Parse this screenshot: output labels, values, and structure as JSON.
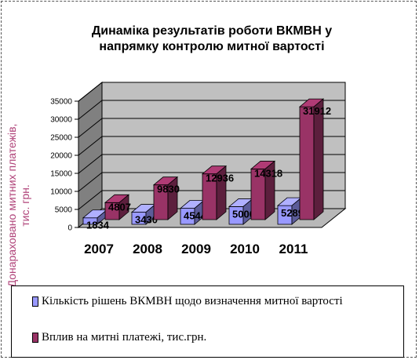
{
  "chart_data": {
    "type": "bar",
    "title_lines": [
      "Динаміка результатів роботи ВКМВН у",
      "напрямку контролю митної вартості"
    ],
    "ylabel_lines": [
      "Донараховано митних платежів,",
      "тис. грн."
    ],
    "categories": [
      "2007",
      "2008",
      "2009",
      "2010",
      "2011"
    ],
    "series": [
      {
        "name": "Кількість рішень ВКМВН щодо визначення митної вартості",
        "values": [
          1834,
          3430,
          4544,
          5000,
          5289
        ],
        "color": "#9999ff"
      },
      {
        "name": "Вплив на митні платежі, тис.грн.",
        "values": [
          4807,
          9830,
          12936,
          14318,
          31912
        ],
        "color": "#993366"
      }
    ],
    "value_labels": [
      [
        "1834",
        "3430",
        "4544",
        "5000",
        "5289"
      ],
      [
        "4807",
        "9830",
        "12936",
        "14318",
        "31912"
      ]
    ],
    "yticks": [
      "0",
      "5000",
      "10000",
      "15000",
      "20000",
      "25000",
      "30000",
      "35000"
    ],
    "ylim": [
      0,
      35000
    ],
    "wall_color": "#c0c0c0",
    "grid": true,
    "legend_position": "bottom"
  }
}
